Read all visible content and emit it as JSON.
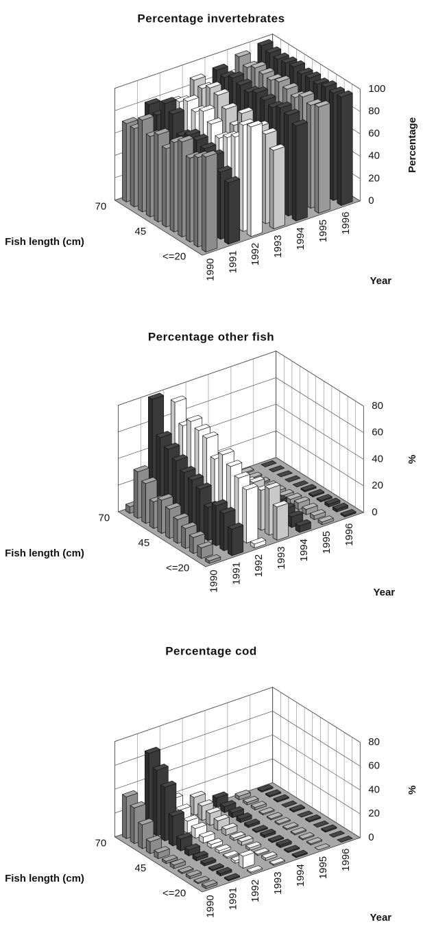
{
  "chart_data": [
    {
      "type": "bar3d",
      "title": "Percentage invertebrates",
      "xlabel": "Year",
      "ylabel": "Percentage",
      "zlabel": "Fish length (cm)",
      "categories": [
        "<=20",
        null,
        null,
        null,
        null,
        "45",
        null,
        null,
        null,
        null,
        "70"
      ],
      "ylim": [
        0,
        100
      ],
      "yticks": [
        0,
        20,
        40,
        60,
        80,
        100
      ],
      "grid": true,
      "series": [
        {
          "name": "1990",
          "color": "#8c8c8c",
          "values": [
            85,
            80,
            75,
            85,
            80,
            70,
            78,
            72,
            82,
            70,
            70
          ]
        },
        {
          "name": "1991",
          "color": "#3a3a3a",
          "values": [
            55,
            60,
            70,
            72,
            75,
            75,
            70,
            85,
            90,
            75,
            80
          ]
        },
        {
          "name": "1992",
          "color": "#ffffff",
          "values": [
            98,
            95,
            80,
            75,
            70,
            78,
            85,
            80,
            85,
            80,
            75
          ]
        },
        {
          "name": "1993",
          "color": "#c8c8c8",
          "values": [
            70,
            80,
            82,
            75,
            85,
            70,
            80,
            88,
            90,
            85,
            88
          ]
        },
        {
          "name": "1994",
          "color": "#3a3a3a",
          "values": [
            85,
            90,
            92,
            88,
            90,
            92,
            88,
            90,
            92,
            88,
            90
          ]
        },
        {
          "name": "1995",
          "color": "#9a9a9a",
          "values": [
            95,
            92,
            95,
            90,
            93,
            95,
            92,
            93,
            94,
            90,
            95
          ]
        },
        {
          "name": "1996",
          "color": "#3a3a3a",
          "values": [
            97,
            96,
            97,
            95,
            96,
            95,
            97,
            96,
            95,
            96,
            98
          ]
        }
      ]
    },
    {
      "type": "bar3d",
      "title": "Percentage other fish",
      "xlabel": "Year",
      "ylabel": "%",
      "zlabel": "Fish length (cm)",
      "categories": [
        "<=20",
        null,
        null,
        null,
        null,
        "45",
        null,
        null,
        null,
        null,
        "70"
      ],
      "ylim": [
        0,
        80
      ],
      "yticks": [
        0,
        20,
        40,
        60,
        80
      ],
      "grid": true,
      "series": [
        {
          "name": "1990",
          "color": "#8c8c8c",
          "values": [
            2,
            8,
            12,
            15,
            18,
            22,
            25,
            20,
            30,
            35,
            5
          ]
        },
        {
          "name": "1991",
          "color": "#3a3a3a",
          "values": [
            20,
            28,
            30,
            25,
            35,
            38,
            40,
            45,
            50,
            55,
            80
          ]
        },
        {
          "name": "1992",
          "color": "#ffffff",
          "values": [
            3,
            40,
            45,
            50,
            55,
            48,
            60,
            62,
            65,
            58,
            72
          ]
        },
        {
          "name": "1993",
          "color": "#c8c8c8",
          "values": [
            25,
            35,
            30,
            32,
            28,
            25,
            22,
            20,
            18,
            15,
            10
          ]
        },
        {
          "name": "1994",
          "color": "#3a3a3a",
          "values": [
            5,
            8,
            10,
            12,
            10,
            8,
            6,
            5,
            4,
            3,
            2
          ]
        },
        {
          "name": "1995",
          "color": "#9a9a9a",
          "values": [
            2,
            3,
            4,
            5,
            4,
            3,
            2,
            2,
            1,
            1,
            1
          ]
        },
        {
          "name": "1996",
          "color": "#3a3a3a",
          "values": [
            1,
            2,
            2,
            1,
            1,
            1,
            0,
            0,
            0,
            0,
            0
          ]
        }
      ]
    },
    {
      "type": "bar3d",
      "title": "Percentage cod",
      "xlabel": "Year",
      "ylabel": "%",
      "zlabel": "Fish length (cm)",
      "categories": [
        "<=20",
        null,
        null,
        null,
        null,
        "45",
        null,
        null,
        null,
        null,
        "70"
      ],
      "ylim": [
        0,
        80
      ],
      "yticks": [
        0,
        20,
        40,
        60,
        80
      ],
      "grid": true,
      "series": [
        {
          "name": "1990",
          "color": "#8c8c8c",
          "values": [
            2,
            1,
            2,
            1,
            3,
            2,
            5,
            10,
            20,
            30,
            35
          ]
        },
        {
          "name": "1991",
          "color": "#3a3a3a",
          "values": [
            1,
            2,
            1,
            2,
            3,
            5,
            10,
            25,
            45,
            55,
            65
          ]
        },
        {
          "name": "1992",
          "color": "#ffffff",
          "values": [
            1,
            10,
            2,
            1,
            2,
            3,
            5,
            8,
            10,
            15,
            20
          ]
        },
        {
          "name": "1993",
          "color": "#c8c8c8",
          "values": [
            1,
            2,
            1,
            2,
            3,
            2,
            5,
            8,
            10,
            12,
            15
          ]
        },
        {
          "name": "1994",
          "color": "#3a3a3a",
          "values": [
            1,
            1,
            2,
            1,
            2,
            1,
            2,
            3,
            4,
            5,
            8
          ]
        },
        {
          "name": "1995",
          "color": "#9a9a9a",
          "values": [
            0,
            1,
            1,
            1,
            1,
            1,
            1,
            1,
            2,
            2,
            3
          ]
        },
        {
          "name": "1996",
          "color": "#3a3a3a",
          "values": [
            0,
            0,
            1,
            0,
            1,
            0,
            1,
            0,
            1,
            1,
            1
          ]
        }
      ]
    }
  ]
}
